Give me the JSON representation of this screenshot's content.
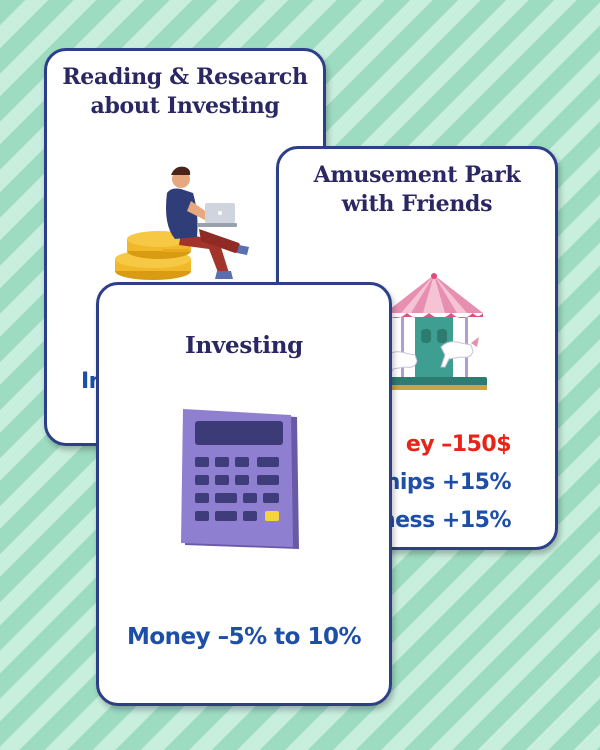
{
  "cards": [
    {
      "title_lines": [
        "Reading & Research",
        "about Investing"
      ],
      "illustration": "person-with-laptop-on-coins-icon",
      "effects": [
        {
          "text": "In",
          "color": "#1e4fa8"
        }
      ]
    },
    {
      "title_lines": [
        "Amusement Park",
        "with Friends"
      ],
      "illustration": "carousel-icon",
      "effects": [
        {
          "text": "ey –150$",
          "color": "#e8231a"
        },
        {
          "text": "nships +15%",
          "color": "#1e4fa8"
        },
        {
          "text": "ness +15%",
          "color": "#1e4fa8"
        }
      ]
    },
    {
      "title_lines": [
        "Investing"
      ],
      "illustration": "calculator-icon",
      "effects": [
        {
          "text": "Money –5% to 10%",
          "color": "#1e4fa8"
        }
      ]
    }
  ],
  "colors": {
    "title": "#2b2762",
    "card_border": "#2e3f8a",
    "effect_blue": "#1e4fa8",
    "effect_red": "#e8231a"
  }
}
